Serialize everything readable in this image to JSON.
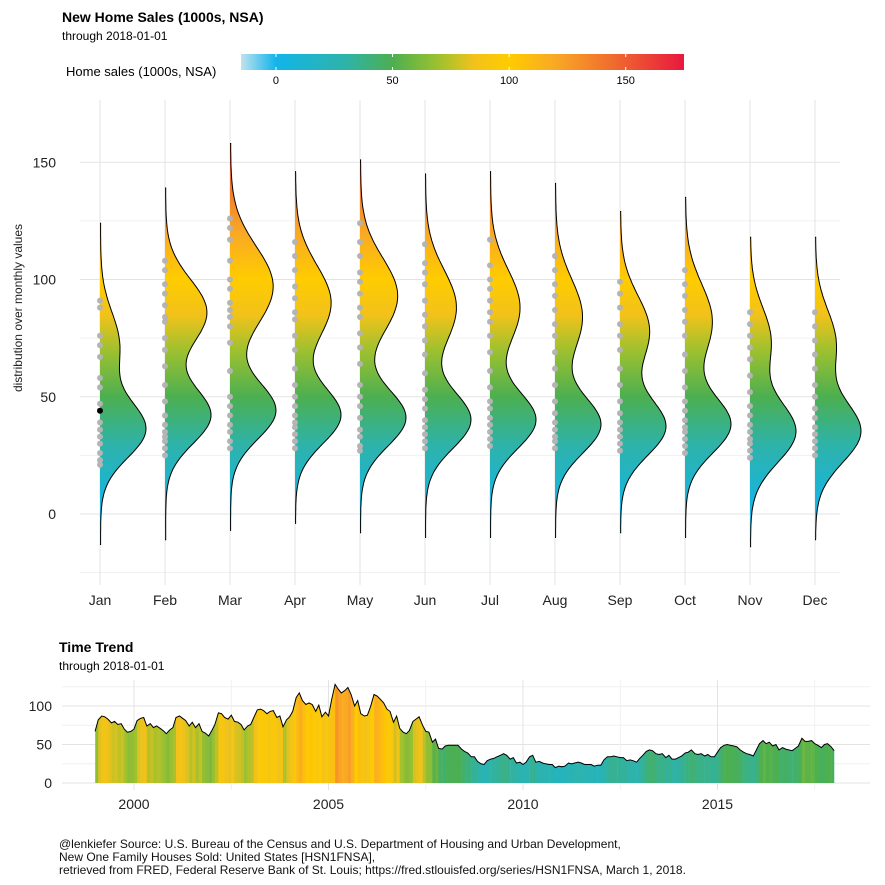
{
  "top_chart": {
    "title": "New Home Sales (1000s, NSA)",
    "subtitle": "through  2018-01-01",
    "legend": {
      "title": "Home sales (1000s, NSA)",
      "ticks": [
        "0",
        "50",
        "100",
        "150"
      ]
    },
    "ylabel": "distribution over monthly values"
  },
  "bottom_chart": {
    "title": "Time Trend",
    "subtitle": "through  2018-01-01"
  },
  "caption": {
    "line1": "@lenkiefer Source: U.S. Bureau of the Census and U.S. Department of Housing and Urban Development,",
    "line2": "New One Family Houses Sold: United States [HSN1FNSA],",
    "line3": "retrieved from FRED, Federal Reserve Bank of St. Louis; https://fred.stlouisfed.org/series/HSN1FNSA, March 1, 2018."
  },
  "colors": {
    "scale": [
      "#bfe3ee",
      "#12b4ea",
      "#2fb3a8",
      "#4caf50",
      "#9fc12f",
      "#f2c21a",
      "#ffcc00",
      "#f9a825",
      "#f06a2e",
      "#e8183f"
    ],
    "scale_domain": [
      -15,
      0,
      30,
      50,
      70,
      85,
      100,
      120,
      145,
      175
    ],
    "outline": "#000000",
    "points": "#b4b4b4",
    "highlight": "#000000",
    "grid": "#e3e3e3"
  },
  "chart_data": [
    {
      "type": "violin",
      "title": "New Home Sales (1000s, NSA)",
      "subtitle": "through  2018-01-01",
      "xlabel": "",
      "ylabel": "distribution over monthly values",
      "ylim": [
        -25,
        175
      ],
      "yticks": [
        0,
        50,
        100,
        150
      ],
      "grid": true,
      "legend": {
        "title": "Home sales (1000s, NSA)",
        "placement": "top",
        "ticks": [
          0,
          50,
          100,
          150
        ],
        "range": [
          -15,
          175
        ]
      },
      "categories": [
        "Jan",
        "Feb",
        "Mar",
        "Apr",
        "May",
        "Jun",
        "Jul",
        "Aug",
        "Sep",
        "Oct",
        "Nov",
        "Dec"
      ],
      "distributions": [
        {
          "month": "Jan",
          "min": -13,
          "max": 124,
          "peaks": [
            {
              "y": 36,
              "d": 0.95,
              "s": 12
            },
            {
              "y": 72,
              "d": 0.4,
              "s": 14
            }
          ],
          "points": [
            91,
            88,
            76,
            72,
            67,
            58,
            54,
            47,
            44,
            39,
            36,
            33,
            30,
            26,
            23,
            21
          ]
        },
        {
          "month": "Feb",
          "min": -11,
          "max": 139,
          "peaks": [
            {
              "y": 42,
              "d": 0.82,
              "s": 12
            },
            {
              "y": 86,
              "d": 0.75,
              "s": 14
            }
          ],
          "points": [
            108,
            104,
            98,
            94,
            89,
            84,
            82,
            75,
            70,
            63,
            55,
            48,
            42,
            38,
            35,
            33,
            31,
            28,
            25
          ]
        },
        {
          "month": "Mar",
          "min": -7,
          "max": 158,
          "peaks": [
            {
              "y": 44,
              "d": 0.9,
              "s": 12
            },
            {
              "y": 97,
              "d": 0.85,
              "s": 17
            }
          ],
          "points": [
            126,
            122,
            117,
            108,
            100,
            96,
            90,
            87,
            84,
            80,
            73,
            61,
            50,
            46,
            42,
            38,
            35,
            31,
            28
          ]
        },
        {
          "month": "Apr",
          "min": -4,
          "max": 146,
          "peaks": [
            {
              "y": 42,
              "d": 0.95,
              "s": 12
            },
            {
              "y": 90,
              "d": 0.75,
              "s": 16
            }
          ],
          "points": [
            116,
            110,
            104,
            97,
            92,
            86,
            83,
            76,
            70,
            62,
            55,
            50,
            46,
            42,
            39,
            37,
            34,
            31,
            28
          ]
        },
        {
          "month": "May",
          "min": -8,
          "max": 151,
          "peaks": [
            {
              "y": 41,
              "d": 0.95,
              "s": 12
            },
            {
              "y": 93,
              "d": 0.78,
              "s": 16
            }
          ],
          "points": [
            124,
            116,
            110,
            103,
            99,
            94,
            88,
            84,
            77,
            71,
            64,
            55,
            50,
            46,
            41,
            36,
            33,
            29,
            27
          ]
        },
        {
          "month": "Jun",
          "min": -10,
          "max": 145,
          "peaks": [
            {
              "y": 40,
              "d": 0.95,
              "s": 12
            },
            {
              "y": 88,
              "d": 0.65,
              "s": 16
            }
          ],
          "points": [
            115,
            107,
            103,
            98,
            91,
            85,
            80,
            74,
            68,
            60,
            53,
            49,
            45,
            40,
            37,
            34,
            31,
            28
          ]
        },
        {
          "month": "Jul",
          "min": -10,
          "max": 146,
          "peaks": [
            {
              "y": 40,
              "d": 0.95,
              "s": 12
            },
            {
              "y": 88,
              "d": 0.62,
              "s": 16
            }
          ],
          "points": [
            117,
            106,
            100,
            96,
            91,
            86,
            82,
            76,
            69,
            61,
            54,
            48,
            45,
            41,
            38,
            35,
            32,
            29
          ]
        },
        {
          "month": "Aug",
          "min": -10,
          "max": 141,
          "peaks": [
            {
              "y": 38,
              "d": 0.92,
              "s": 12
            },
            {
              "y": 84,
              "d": 0.55,
              "s": 16
            }
          ],
          "points": [
            110,
            104,
            98,
            93,
            87,
            81,
            76,
            69,
            62,
            55,
            48,
            43,
            39,
            36,
            33,
            31,
            28
          ]
        },
        {
          "month": "Sep",
          "min": -8,
          "max": 129,
          "peaks": [
            {
              "y": 37,
              "d": 0.85,
              "s": 12
            },
            {
              "y": 78,
              "d": 0.55,
              "s": 15
            }
          ],
          "points": [
            99,
            94,
            88,
            81,
            76,
            70,
            62,
            55,
            48,
            43,
            39,
            36,
            33,
            30,
            27
          ]
        },
        {
          "month": "Oct",
          "min": -10,
          "max": 135,
          "peaks": [
            {
              "y": 38,
              "d": 0.92,
              "s": 12
            },
            {
              "y": 82,
              "d": 0.55,
              "s": 16
            }
          ],
          "points": [
            104,
            98,
            93,
            87,
            82,
            76,
            68,
            61,
            54,
            48,
            44,
            40,
            37,
            35,
            32,
            29,
            26
          ]
        },
        {
          "month": "Nov",
          "min": -14,
          "max": 118,
          "peaks": [
            {
              "y": 35,
              "d": 1.0,
              "s": 13
            },
            {
              "y": 74,
              "d": 0.45,
              "s": 14
            }
          ],
          "points": [
            86,
            81,
            76,
            71,
            66,
            59,
            52,
            46,
            42,
            38,
            35,
            32,
            30,
            27,
            24
          ]
        },
        {
          "month": "Dec",
          "min": -11,
          "max": 118,
          "peaks": [
            {
              "y": 35,
              "d": 1.0,
              "s": 13
            },
            {
              "y": 73,
              "d": 0.45,
              "s": 14
            }
          ],
          "points": [
            86,
            80,
            74,
            68,
            62,
            55,
            50,
            45,
            41,
            37,
            34,
            31,
            28,
            25
          ]
        }
      ],
      "highlight": {
        "month": "Jan",
        "value": 44
      }
    },
    {
      "type": "area",
      "title": "Time Trend",
      "subtitle": "through  2018-01-01",
      "xlabel": "",
      "ylabel": "",
      "xlim": [
        1998.1,
        2019.1
      ],
      "ylim": [
        -5,
        135
      ],
      "xticks": [
        2000,
        2005,
        2010,
        2015
      ],
      "yticks": [
        0,
        50,
        100
      ],
      "grid": true,
      "x": [
        1999.0,
        1999.08,
        1999.17,
        1999.25,
        1999.33,
        1999.42,
        1999.5,
        1999.58,
        1999.67,
        1999.75,
        1999.83,
        1999.92,
        2000.0,
        2000.08,
        2000.17,
        2000.25,
        2000.33,
        2000.42,
        2000.5,
        2000.58,
        2000.67,
        2000.75,
        2000.83,
        2000.92,
        2001.0,
        2001.08,
        2001.17,
        2001.25,
        2001.33,
        2001.42,
        2001.5,
        2001.58,
        2001.67,
        2001.75,
        2001.83,
        2001.92,
        2002.0,
        2002.08,
        2002.17,
        2002.25,
        2002.33,
        2002.42,
        2002.5,
        2002.58,
        2002.67,
        2002.75,
        2002.83,
        2002.92,
        2003.0,
        2003.08,
        2003.17,
        2003.25,
        2003.33,
        2003.42,
        2003.5,
        2003.58,
        2003.67,
        2003.75,
        2003.83,
        2003.92,
        2004.0,
        2004.08,
        2004.17,
        2004.25,
        2004.33,
        2004.42,
        2004.5,
        2004.58,
        2004.67,
        2004.75,
        2004.83,
        2004.92,
        2005.0,
        2005.08,
        2005.17,
        2005.25,
        2005.33,
        2005.42,
        2005.5,
        2005.58,
        2005.67,
        2005.75,
        2005.83,
        2005.92,
        2006.0,
        2006.08,
        2006.17,
        2006.25,
        2006.33,
        2006.42,
        2006.5,
        2006.58,
        2006.67,
        2006.75,
        2006.83,
        2006.92,
        2007.0,
        2007.08,
        2007.17,
        2007.25,
        2007.33,
        2007.42,
        2007.5,
        2007.58,
        2007.67,
        2007.75,
        2007.83,
        2007.92,
        2008.0,
        2008.08,
        2008.17,
        2008.25,
        2008.33,
        2008.42,
        2008.5,
        2008.58,
        2008.67,
        2008.75,
        2008.83,
        2008.92,
        2009.0,
        2009.08,
        2009.17,
        2009.25,
        2009.33,
        2009.42,
        2009.5,
        2009.58,
        2009.67,
        2009.75,
        2009.83,
        2009.92,
        2010.0,
        2010.08,
        2010.17,
        2010.25,
        2010.33,
        2010.42,
        2010.5,
        2010.58,
        2010.67,
        2010.75,
        2010.83,
        2010.92,
        2011.0,
        2011.08,
        2011.17,
        2011.25,
        2011.33,
        2011.42,
        2011.5,
        2011.58,
        2011.67,
        2011.75,
        2011.83,
        2011.92,
        2012.0,
        2012.08,
        2012.17,
        2012.25,
        2012.33,
        2012.42,
        2012.5,
        2012.58,
        2012.67,
        2012.75,
        2012.83,
        2012.92,
        2013.0,
        2013.08,
        2013.17,
        2013.25,
        2013.33,
        2013.42,
        2013.5,
        2013.58,
        2013.67,
        2013.75,
        2013.83,
        2013.92,
        2014.0,
        2014.08,
        2014.17,
        2014.25,
        2014.33,
        2014.42,
        2014.5,
        2014.58,
        2014.67,
        2014.75,
        2014.83,
        2014.92,
        2015.0,
        2015.08,
        2015.17,
        2015.25,
        2015.33,
        2015.42,
        2015.5,
        2015.58,
        2015.67,
        2015.75,
        2015.83,
        2015.92,
        2016.0,
        2016.08,
        2016.17,
        2016.25,
        2016.33,
        2016.42,
        2016.5,
        2016.58,
        2016.67,
        2016.75,
        2016.83,
        2016.92,
        2017.0,
        2017.08,
        2017.17,
        2017.25,
        2017.33,
        2017.42,
        2017.5,
        2017.58,
        2017.67,
        2017.75,
        2017.83,
        2017.92,
        2018.0
      ],
      "values": [
        67,
        82,
        87,
        86,
        83,
        78,
        80,
        76,
        77,
        70,
        66,
        67,
        70,
        81,
        84,
        85,
        74,
        77,
        72,
        74,
        71,
        68,
        64,
        69,
        72,
        85,
        87,
        84,
        81,
        74,
        79,
        72,
        77,
        67,
        65,
        61,
        68,
        76,
        91,
        90,
        85,
        83,
        88,
        80,
        79,
        76,
        69,
        74,
        76,
        85,
        95,
        96,
        94,
        90,
        93,
        94,
        85,
        87,
        73,
        82,
        86,
        93,
        111,
        117,
        107,
        102,
        104,
        102,
        93,
        101,
        86,
        92,
        87,
        108,
        128,
        122,
        117,
        120,
        124,
        115,
        100,
        107,
        90,
        87,
        88,
        99,
        115,
        113,
        109,
        104,
        96,
        93,
        79,
        87,
        71,
        66,
        64,
        68,
        80,
        83,
        86,
        75,
        67,
        66,
        53,
        57,
        45,
        44,
        48,
        49,
        49,
        49,
        49,
        44,
        41,
        39,
        34,
        34,
        28,
        25,
        24,
        29,
        31,
        32,
        34,
        36,
        38,
        36,
        31,
        33,
        26,
        27,
        24,
        27,
        34,
        36,
        27,
        28,
        26,
        25,
        24,
        24,
        20,
        22,
        21,
        22,
        26,
        25,
        26,
        27,
        26,
        24,
        24,
        24,
        22,
        23,
        23,
        30,
        34,
        34,
        35,
        34,
        33,
        33,
        29,
        30,
        29,
        27,
        32,
        36,
        41,
        43,
        42,
        38,
        37,
        38,
        33,
        36,
        31,
        31,
        33,
        35,
        39,
        40,
        43,
        38,
        37,
        38,
        35,
        37,
        34,
        34,
        40,
        46,
        49,
        50,
        49,
        48,
        47,
        43,
        40,
        38,
        37,
        35,
        43,
        51,
        55,
        51,
        53,
        48,
        50,
        43,
        46,
        44,
        43,
        42,
        45,
        48,
        58,
        54,
        54,
        55,
        51,
        49,
        46,
        50,
        51,
        47,
        42
      ]
    }
  ]
}
